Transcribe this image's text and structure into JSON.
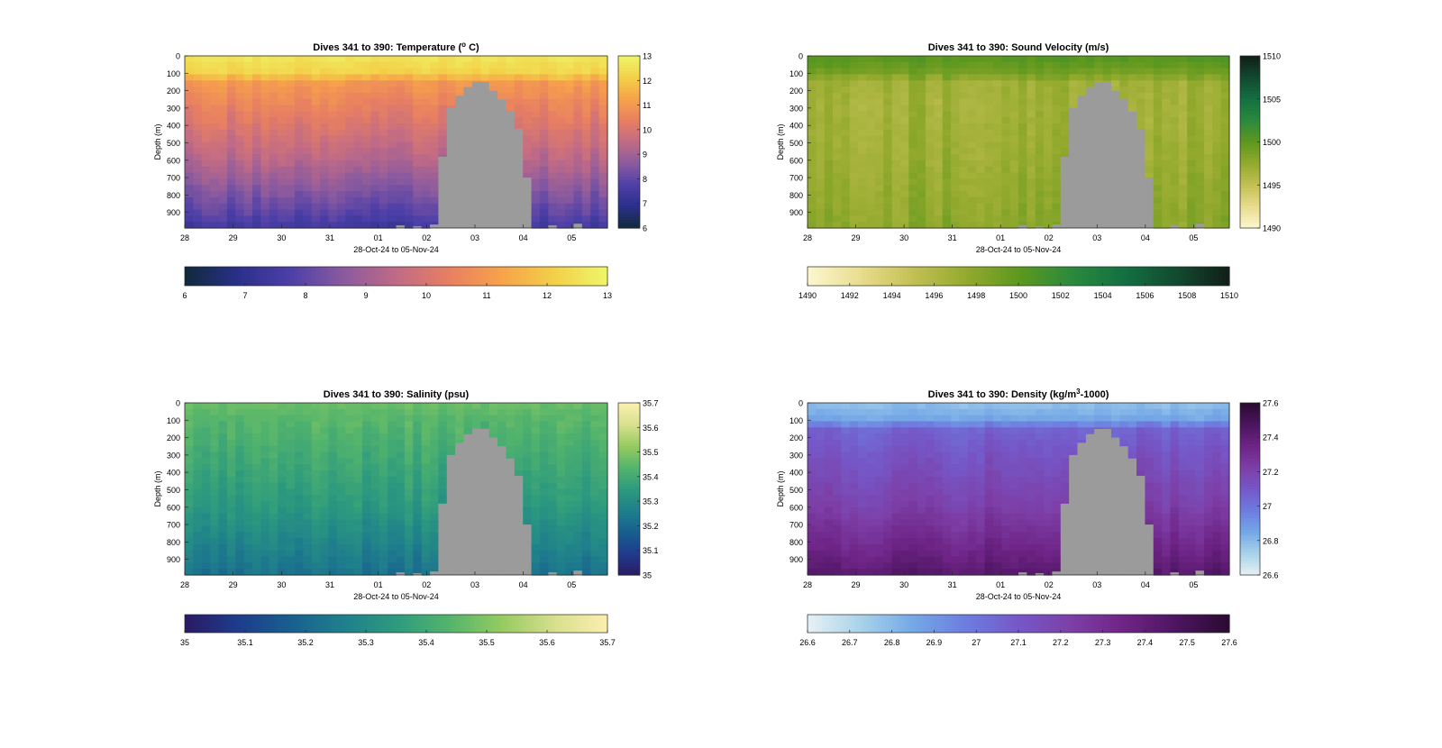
{
  "figure": {
    "x_tick_labels": [
      "28",
      "29",
      "30",
      "31",
      "01",
      "02",
      "03",
      "04",
      "05"
    ],
    "depth_tick_labels": [
      "0",
      "100",
      "200",
      "300",
      "400",
      "500",
      "600",
      "700",
      "800",
      "900"
    ]
  },
  "chart_data": [
    {
      "type": "heatmap",
      "title": "Dives 341 to 390: Temperature (",
      "title_super": "o",
      "title_tail": " C)",
      "xlabel": "28-Oct-24 to 05-Nov-24",
      "ylabel": "Depth (m)",
      "x_tick_labels": [
        "28",
        "29",
        "30",
        "31",
        "01",
        "02",
        "03",
        "04",
        "05"
      ],
      "ylim": [
        0,
        990
      ],
      "y_reversed": true,
      "colormap": [
        "#0f2a3a",
        "#2a2f8a",
        "#4d3fa8",
        "#8a5a9f",
        "#c06a86",
        "#e87f62",
        "#f7a24a",
        "#f3d048",
        "#eef66a"
      ],
      "colorbar_ticks": [
        "6",
        "7",
        "8",
        "9",
        "10",
        "11",
        "12",
        "13"
      ],
      "clim": [
        6,
        13
      ],
      "profile": {
        "depth": [
          0,
          100,
          150,
          300,
          600,
          900,
          990
        ],
        "value": [
          12.6,
          12.2,
          11.0,
          10.4,
          9.3,
          7.9,
          7.4
        ]
      },
      "bathymetry_color": "#9b9b9b"
    },
    {
      "type": "heatmap",
      "title": "Dives 341 to 390: Sound Velocity (m/s)",
      "xlabel": "28-Oct-24 to 05-Nov-24",
      "ylabel": "Depth (m)",
      "x_tick_labels": [
        "28",
        "29",
        "30",
        "31",
        "01",
        "02",
        "03",
        "04",
        "05"
      ],
      "ylim": [
        0,
        990
      ],
      "y_reversed": true,
      "colormap": [
        "#fdf7d0",
        "#e9dd8e",
        "#c3c054",
        "#94aa2e",
        "#5e981e",
        "#2b8a3d",
        "#137041",
        "#124a30",
        "#111f18"
      ],
      "colorbar_ticks": [
        "1490",
        "1495",
        "1500",
        "1505",
        "1510"
      ],
      "h_colorbar_ticks": [
        "1490",
        "1492",
        "1494",
        "1496",
        "1498",
        "1500",
        "1502",
        "1504",
        "1506",
        "1508",
        "1510"
      ],
      "clim": [
        1490,
        1510
      ],
      "profile": {
        "depth": [
          0,
          100,
          150,
          300,
          600,
          900,
          990
        ],
        "value": [
          1500.5,
          1499.0,
          1497.0,
          1496.8,
          1497.2,
          1497.8,
          1498.0
        ]
      },
      "bathymetry_color": "#9b9b9b"
    },
    {
      "type": "heatmap",
      "title": "Dives 341 to 390: Salinity (psu)",
      "xlabel": "28-Oct-24 to 05-Nov-24",
      "ylabel": "Depth (m)",
      "x_tick_labels": [
        "28",
        "29",
        "30",
        "31",
        "01",
        "02",
        "03",
        "04",
        "05"
      ],
      "ylim": [
        0,
        990
      ],
      "y_reversed": true,
      "colormap": [
        "#2a1a63",
        "#1f3b8c",
        "#185f8f",
        "#1f7f8c",
        "#2d9a7e",
        "#53b46c",
        "#95cb60",
        "#d8df8e",
        "#fbefb0"
      ],
      "colorbar_ticks": [
        "35",
        "35.1",
        "35.2",
        "35.3",
        "35.4",
        "35.5",
        "35.6",
        "35.7"
      ],
      "clim": [
        35,
        35.7
      ],
      "profile": {
        "depth": [
          0,
          100,
          300,
          600,
          900,
          990
        ],
        "value": [
          35.47,
          35.44,
          35.4,
          35.34,
          35.25,
          35.22
        ]
      },
      "bathymetry_color": "#9b9b9b"
    },
    {
      "type": "heatmap",
      "title": "Dives 341 to 390: Density (kg/m",
      "title_super": "3",
      "title_tail": "-1000)",
      "xlabel": "28-Oct-24 to 05-Nov-24",
      "ylabel": "Depth (m)",
      "x_tick_labels": [
        "28",
        "29",
        "30",
        "31",
        "01",
        "02",
        "03",
        "04",
        "05"
      ],
      "ylim": [
        0,
        990
      ],
      "y_reversed": true,
      "colormap": [
        "#e7f1f4",
        "#a9d3ea",
        "#75a8e6",
        "#6d7ddf",
        "#7558c8",
        "#7d3fa7",
        "#6e2486",
        "#4c1560",
        "#2a0b30"
      ],
      "colorbar_ticks": [
        "26.6",
        "26.8",
        "27",
        "27.2",
        "27.4",
        "27.6"
      ],
      "h_colorbar_ticks": [
        "26.6",
        "26.7",
        "26.8",
        "26.9",
        "27",
        "27.1",
        "27.2",
        "27.3",
        "27.4",
        "27.5",
        "27.6"
      ],
      "clim": [
        26.6,
        27.6
      ],
      "profile": {
        "depth": [
          0,
          100,
          150,
          300,
          600,
          900,
          990
        ],
        "value": [
          26.78,
          26.86,
          27.06,
          27.12,
          27.22,
          27.38,
          27.44
        ]
      },
      "bathymetry_color": "#9b9b9b"
    }
  ]
}
